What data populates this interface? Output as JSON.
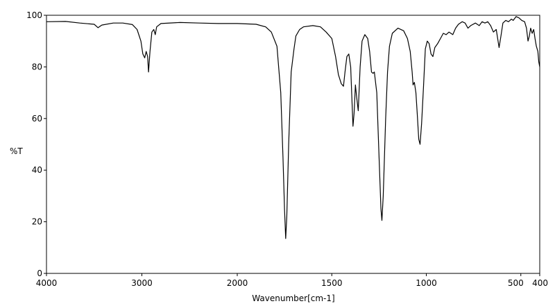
{
  "chart_data": {
    "type": "line",
    "title": "",
    "xlabel": "Wavenumber[cm-1]",
    "ylabel": "%T",
    "xlim": [
      4000,
      400
    ],
    "ylim": [
      0,
      100
    ],
    "x_reversed": true,
    "grid": false,
    "legend": "none",
    "x_ticks": [
      {
        "value": 4000,
        "label": "4000"
      },
      {
        "value": 3000,
        "label": "3000"
      },
      {
        "value": 2000,
        "label": "2000"
      },
      {
        "value": 1500,
        "label": "1500"
      },
      {
        "value": 1000,
        "label": "1000"
      },
      {
        "value": 500,
        "label": "500"
      },
      {
        "value": 400,
        "label": "400"
      }
    ],
    "y_ticks": [
      {
        "value": 0,
        "label": "0"
      },
      {
        "value": 20,
        "label": "20"
      },
      {
        "value": 40,
        "label": "40"
      },
      {
        "value": 60,
        "label": "60"
      },
      {
        "value": 80,
        "label": "80"
      },
      {
        "value": 100,
        "label": "100"
      }
    ],
    "series": [
      {
        "color": "#000000",
        "points": [
          [
            4000,
            97.5
          ],
          [
            3800,
            97.6
          ],
          [
            3650,
            97.0
          ],
          [
            3500,
            96.5
          ],
          [
            3460,
            95.2
          ],
          [
            3420,
            96.2
          ],
          [
            3300,
            97.0
          ],
          [
            3200,
            97.0
          ],
          [
            3100,
            96.4
          ],
          [
            3050,
            94.5
          ],
          [
            3010,
            90.0
          ],
          [
            2990,
            85.0
          ],
          [
            2970,
            83.5
          ],
          [
            2955,
            86.0
          ],
          [
            2940,
            84.0
          ],
          [
            2930,
            78.0
          ],
          [
            2915,
            86.0
          ],
          [
            2895,
            93.5
          ],
          [
            2875,
            94.5
          ],
          [
            2860,
            92.5
          ],
          [
            2845,
            95.5
          ],
          [
            2800,
            96.8
          ],
          [
            2600,
            97.2
          ],
          [
            2400,
            97.0
          ],
          [
            2200,
            96.8
          ],
          [
            2000,
            96.8
          ],
          [
            1900,
            96.5
          ],
          [
            1850,
            95.5
          ],
          [
            1820,
            93.5
          ],
          [
            1790,
            88.0
          ],
          [
            1770,
            70.0
          ],
          [
            1758,
            45.0
          ],
          [
            1750,
            25.0
          ],
          [
            1744,
            13.5
          ],
          [
            1738,
            22.0
          ],
          [
            1728,
            50.0
          ],
          [
            1715,
            78.0
          ],
          [
            1700,
            87.0
          ],
          [
            1690,
            92.0
          ],
          [
            1670,
            94.5
          ],
          [
            1650,
            95.5
          ],
          [
            1600,
            96.0
          ],
          [
            1560,
            95.5
          ],
          [
            1530,
            93.5
          ],
          [
            1500,
            91.0
          ],
          [
            1480,
            84.0
          ],
          [
            1465,
            77.0
          ],
          [
            1450,
            73.5
          ],
          [
            1438,
            72.5
          ],
          [
            1430,
            78.0
          ],
          [
            1420,
            84.0
          ],
          [
            1410,
            85.0
          ],
          [
            1400,
            80.0
          ],
          [
            1395,
            70.0
          ],
          [
            1388,
            57.0
          ],
          [
            1382,
            62.0
          ],
          [
            1375,
            73.0
          ],
          [
            1368,
            68.0
          ],
          [
            1360,
            63.0
          ],
          [
            1350,
            80.0
          ],
          [
            1340,
            90.0
          ],
          [
            1325,
            92.5
          ],
          [
            1310,
            91.0
          ],
          [
            1300,
            86.0
          ],
          [
            1290,
            78.0
          ],
          [
            1282,
            77.5
          ],
          [
            1275,
            78.0
          ],
          [
            1262,
            70.0
          ],
          [
            1250,
            45.0
          ],
          [
            1240,
            25.0
          ],
          [
            1235,
            20.5
          ],
          [
            1228,
            30.0
          ],
          [
            1215,
            60.0
          ],
          [
            1205,
            78.0
          ],
          [
            1195,
            88.0
          ],
          [
            1180,
            93.0
          ],
          [
            1150,
            95.0
          ],
          [
            1120,
            94.0
          ],
          [
            1100,
            91.0
          ],
          [
            1085,
            86.0
          ],
          [
            1075,
            78.0
          ],
          [
            1070,
            73.0
          ],
          [
            1063,
            74.0
          ],
          [
            1055,
            70.0
          ],
          [
            1048,
            62.0
          ],
          [
            1040,
            52.0
          ],
          [
            1033,
            50.0
          ],
          [
            1025,
            58.0
          ],
          [
            1015,
            72.0
          ],
          [
            1005,
            87.0
          ],
          [
            995,
            90.0
          ],
          [
            985,
            89.0
          ],
          [
            975,
            85.0
          ],
          [
            965,
            84.0
          ],
          [
            955,
            87.5
          ],
          [
            940,
            89.0
          ],
          [
            925,
            91.0
          ],
          [
            910,
            93.0
          ],
          [
            895,
            92.5
          ],
          [
            880,
            93.5
          ],
          [
            860,
            92.5
          ],
          [
            845,
            95.0
          ],
          [
            830,
            96.5
          ],
          [
            810,
            97.5
          ],
          [
            795,
            97.0
          ],
          [
            780,
            95.0
          ],
          [
            765,
            96.0
          ],
          [
            740,
            97.0
          ],
          [
            720,
            96.0
          ],
          [
            705,
            97.5
          ],
          [
            690,
            97.0
          ],
          [
            675,
            97.5
          ],
          [
            660,
            96.0
          ],
          [
            645,
            93.5
          ],
          [
            630,
            94.5
          ],
          [
            615,
            87.5
          ],
          [
            605,
            92.0
          ],
          [
            595,
            97.0
          ],
          [
            580,
            98.0
          ],
          [
            565,
            97.5
          ],
          [
            550,
            98.5
          ],
          [
            540,
            98.0
          ],
          [
            525,
            99.5
          ],
          [
            510,
            99.0
          ],
          [
            495,
            98.0
          ],
          [
            480,
            97.5
          ],
          [
            470,
            95.0
          ],
          [
            462,
            90.0
          ],
          [
            455,
            92.0
          ],
          [
            448,
            95.0
          ],
          [
            440,
            93.0
          ],
          [
            432,
            94.5
          ],
          [
            425,
            91.0
          ],
          [
            418,
            88.0
          ],
          [
            410,
            86.0
          ],
          [
            405,
            82.0
          ],
          [
            400,
            80.0
          ]
        ]
      }
    ]
  }
}
